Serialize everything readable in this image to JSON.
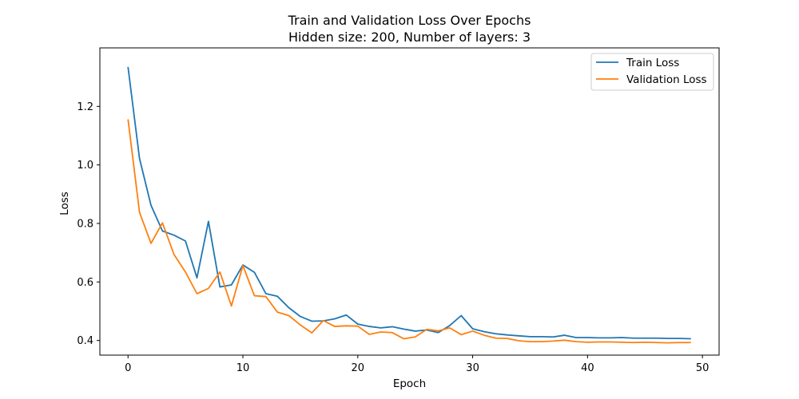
{
  "chart_data": {
    "type": "line",
    "title": "Train and Validation Loss Over Epochs",
    "subtitle": "Hidden size: 200, Number of layers: 3",
    "xlabel": "Epoch",
    "ylabel": "Loss",
    "xlim": [
      -2.45,
      51.45
    ],
    "ylim": [
      0.35,
      1.4
    ],
    "xticks": [
      0,
      10,
      20,
      30,
      40,
      50
    ],
    "yticks": [
      0.4,
      0.6,
      0.8,
      1.0,
      1.2
    ],
    "ytick_labels": [
      "0.4",
      "0.6",
      "0.8",
      "1.0",
      "1.2"
    ],
    "grid": false,
    "legend_position": "top-right",
    "x": [
      0,
      1,
      2,
      3,
      4,
      5,
      6,
      7,
      8,
      9,
      10,
      11,
      12,
      13,
      14,
      15,
      16,
      17,
      18,
      19,
      20,
      21,
      22,
      23,
      24,
      25,
      26,
      27,
      28,
      29,
      30,
      31,
      32,
      33,
      34,
      35,
      36,
      37,
      38,
      39,
      40,
      41,
      42,
      43,
      44,
      45,
      46,
      47,
      48,
      49
    ],
    "series": [
      {
        "name": "Train Loss",
        "color": "#1f77b4",
        "values": [
          1.335,
          1.022,
          0.862,
          0.774,
          0.76,
          0.74,
          0.614,
          0.807,
          0.583,
          0.59,
          0.658,
          0.633,
          0.56,
          0.551,
          0.512,
          0.482,
          0.466,
          0.467,
          0.474,
          0.487,
          0.456,
          0.448,
          0.443,
          0.447,
          0.439,
          0.432,
          0.436,
          0.427,
          0.451,
          0.485,
          0.44,
          0.43,
          0.423,
          0.419,
          0.416,
          0.413,
          0.413,
          0.412,
          0.418,
          0.41,
          0.41,
          0.409,
          0.409,
          0.41,
          0.408,
          0.408,
          0.408,
          0.407,
          0.407,
          0.406
        ]
      },
      {
        "name": "Validation Loss",
        "color": "#ff7f0e",
        "values": [
          1.156,
          0.838,
          0.732,
          0.802,
          0.694,
          0.634,
          0.56,
          0.578,
          0.634,
          0.518,
          0.656,
          0.553,
          0.55,
          0.497,
          0.485,
          0.453,
          0.426,
          0.468,
          0.448,
          0.45,
          0.449,
          0.421,
          0.429,
          0.427,
          0.406,
          0.412,
          0.438,
          0.433,
          0.443,
          0.42,
          0.432,
          0.418,
          0.408,
          0.407,
          0.399,
          0.396,
          0.396,
          0.398,
          0.401,
          0.396,
          0.394,
          0.395,
          0.395,
          0.394,
          0.393,
          0.394,
          0.393,
          0.392,
          0.393,
          0.393
        ]
      }
    ]
  }
}
